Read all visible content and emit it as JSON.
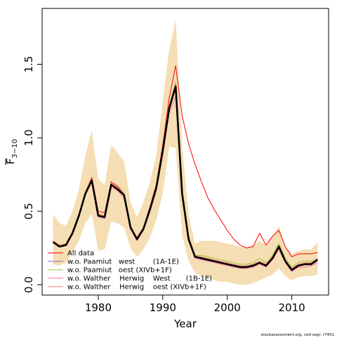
{
  "chart_data": {
    "type": "line",
    "xlabel": "Year",
    "ylabel": {
      "main": "F",
      "sub": "3−10"
    },
    "xlim": [
      1971.3,
      2015.7
    ],
    "ylim": [
      -0.07,
      1.88
    ],
    "x_ticks": [
      1980,
      1990,
      2000,
      2010
    ],
    "x_tick_labels": [
      "1980",
      "1990",
      "2000",
      "2010"
    ],
    "y_ticks": [
      0.0,
      0.5,
      1.0,
      1.5
    ],
    "y_tick_labels": [
      "0.0",
      "0.5",
      "1.0",
      "1.5"
    ],
    "grid": false,
    "legend_position": "bottom-left",
    "footnote": "stockassessment.org, cod-segr. r7401",
    "colors": {
      "band": "#f5deb3",
      "base": "#000000",
      "all_data": "#ff0000",
      "paamiut_west": "#9467bd",
      "paamiut_oest": "#9acd32",
      "walther_west": "#ff69b4",
      "walther_oest": "#fa8072"
    },
    "years": [
      1973,
      1974,
      1975,
      1976,
      1977,
      1978,
      1979,
      1980,
      1981,
      1982,
      1983,
      1984,
      1985,
      1986,
      1987,
      1988,
      1989,
      1990,
      1991,
      1992,
      1993,
      1994,
      1995,
      1996,
      1997,
      1998,
      1999,
      2000,
      2001,
      2002,
      2003,
      2004,
      2005,
      2006,
      2007,
      2008,
      2009,
      2010,
      2011,
      2012,
      2013,
      2014
    ],
    "band": {
      "upper": [
        0.48,
        0.42,
        0.4,
        0.5,
        0.65,
        0.88,
        1.05,
        0.72,
        0.68,
        0.95,
        0.9,
        0.84,
        0.56,
        0.46,
        0.56,
        0.7,
        0.88,
        1.25,
        1.6,
        1.8,
        0.95,
        0.48,
        0.28,
        0.3,
        0.3,
        0.3,
        0.29,
        0.28,
        0.27,
        0.26,
        0.25,
        0.27,
        0.3,
        0.27,
        0.33,
        0.4,
        0.26,
        0.21,
        0.23,
        0.24,
        0.24,
        0.29
      ],
      "lower": [
        0.14,
        0.13,
        0.15,
        0.22,
        0.3,
        0.42,
        0.48,
        0.23,
        0.24,
        0.43,
        0.42,
        0.39,
        0.25,
        0.19,
        0.24,
        0.32,
        0.44,
        0.62,
        0.94,
        0.93,
        0.34,
        0.16,
        0.08,
        0.06,
        0.05,
        0.03,
        0.02,
        0.02,
        0.01,
        0.0,
        0.0,
        0.01,
        0.03,
        0.05,
        0.07,
        0.11,
        0.06,
        0.03,
        0.05,
        0.06,
        0.06,
        0.07
      ]
    },
    "series": [
      {
        "key": "base",
        "values": [
          0.29,
          0.26,
          0.27,
          0.35,
          0.47,
          0.62,
          0.71,
          0.47,
          0.46,
          0.68,
          0.65,
          0.61,
          0.39,
          0.31,
          0.38,
          0.51,
          0.66,
          0.91,
          1.2,
          1.35,
          0.62,
          0.31,
          0.19,
          0.18,
          0.17,
          0.16,
          0.15,
          0.14,
          0.13,
          0.12,
          0.12,
          0.13,
          0.15,
          0.13,
          0.18,
          0.26,
          0.16,
          0.1,
          0.13,
          0.14,
          0.14,
          0.17
        ]
      },
      {
        "key": "all_data",
        "name": "All data",
        "values": [
          0.29,
          0.26,
          0.28,
          0.36,
          0.48,
          0.63,
          0.73,
          0.5,
          0.49,
          0.7,
          0.67,
          0.62,
          0.4,
          0.32,
          0.39,
          0.53,
          0.68,
          0.95,
          1.27,
          1.49,
          1.15,
          0.96,
          0.82,
          0.7,
          0.59,
          0.51,
          0.44,
          0.37,
          0.31,
          0.27,
          0.25,
          0.26,
          0.35,
          0.27,
          0.33,
          0.37,
          0.26,
          0.19,
          0.21,
          0.21,
          0.21,
          0.22
        ]
      },
      {
        "key": "paamiut_west",
        "name": "w.o. Paamiut   west        (1A-1E)",
        "values": [
          0.29,
          0.26,
          0.27,
          0.35,
          0.47,
          0.62,
          0.71,
          0.47,
          0.46,
          0.68,
          0.65,
          0.61,
          0.39,
          0.31,
          0.38,
          0.51,
          0.66,
          0.91,
          1.2,
          1.36,
          0.63,
          0.31,
          0.19,
          0.18,
          0.17,
          0.16,
          0.15,
          0.14,
          0.13,
          0.12,
          0.12,
          0.13,
          0.15,
          0.13,
          0.18,
          0.26,
          0.16,
          0.1,
          0.13,
          0.14,
          0.14,
          0.17
        ]
      },
      {
        "key": "paamiut_oest",
        "name": "w.o. Paamiut   oest (XIVb+1F)",
        "values": [
          0.3,
          0.27,
          0.28,
          0.36,
          0.48,
          0.63,
          0.72,
          0.48,
          0.47,
          0.69,
          0.66,
          0.62,
          0.4,
          0.32,
          0.39,
          0.52,
          0.67,
          0.92,
          1.22,
          1.38,
          0.65,
          0.33,
          0.2,
          0.2,
          0.19,
          0.18,
          0.17,
          0.16,
          0.15,
          0.14,
          0.14,
          0.15,
          0.18,
          0.15,
          0.2,
          0.28,
          0.18,
          0.12,
          0.15,
          0.16,
          0.16,
          0.18
        ]
      },
      {
        "key": "walther_west",
        "name": "w.o. Walther    Herwig    West       (1B-1E)",
        "values": [
          0.29,
          0.26,
          0.27,
          0.35,
          0.47,
          0.61,
          0.7,
          0.46,
          0.45,
          0.66,
          0.64,
          0.59,
          0.38,
          0.3,
          0.37,
          0.5,
          0.64,
          0.89,
          1.17,
          1.28,
          0.6,
          0.3,
          0.18,
          0.17,
          0.16,
          0.15,
          0.14,
          0.13,
          0.12,
          0.11,
          0.11,
          0.12,
          0.14,
          0.12,
          0.17,
          0.24,
          0.15,
          0.09,
          0.12,
          0.12,
          0.13,
          0.15
        ]
      },
      {
        "key": "walther_oest",
        "name": "w.o. Walther    Herwig    oest (XIVb+1F)",
        "values": [
          0.3,
          0.27,
          0.28,
          0.36,
          0.48,
          0.63,
          0.72,
          0.48,
          0.47,
          0.69,
          0.66,
          0.61,
          0.4,
          0.32,
          0.39,
          0.52,
          0.67,
          0.92,
          1.21,
          1.37,
          0.64,
          0.32,
          0.2,
          0.19,
          0.18,
          0.17,
          0.16,
          0.15,
          0.14,
          0.13,
          0.13,
          0.14,
          0.16,
          0.14,
          0.19,
          0.27,
          0.17,
          0.11,
          0.14,
          0.15,
          0.15,
          0.18
        ]
      }
    ]
  }
}
